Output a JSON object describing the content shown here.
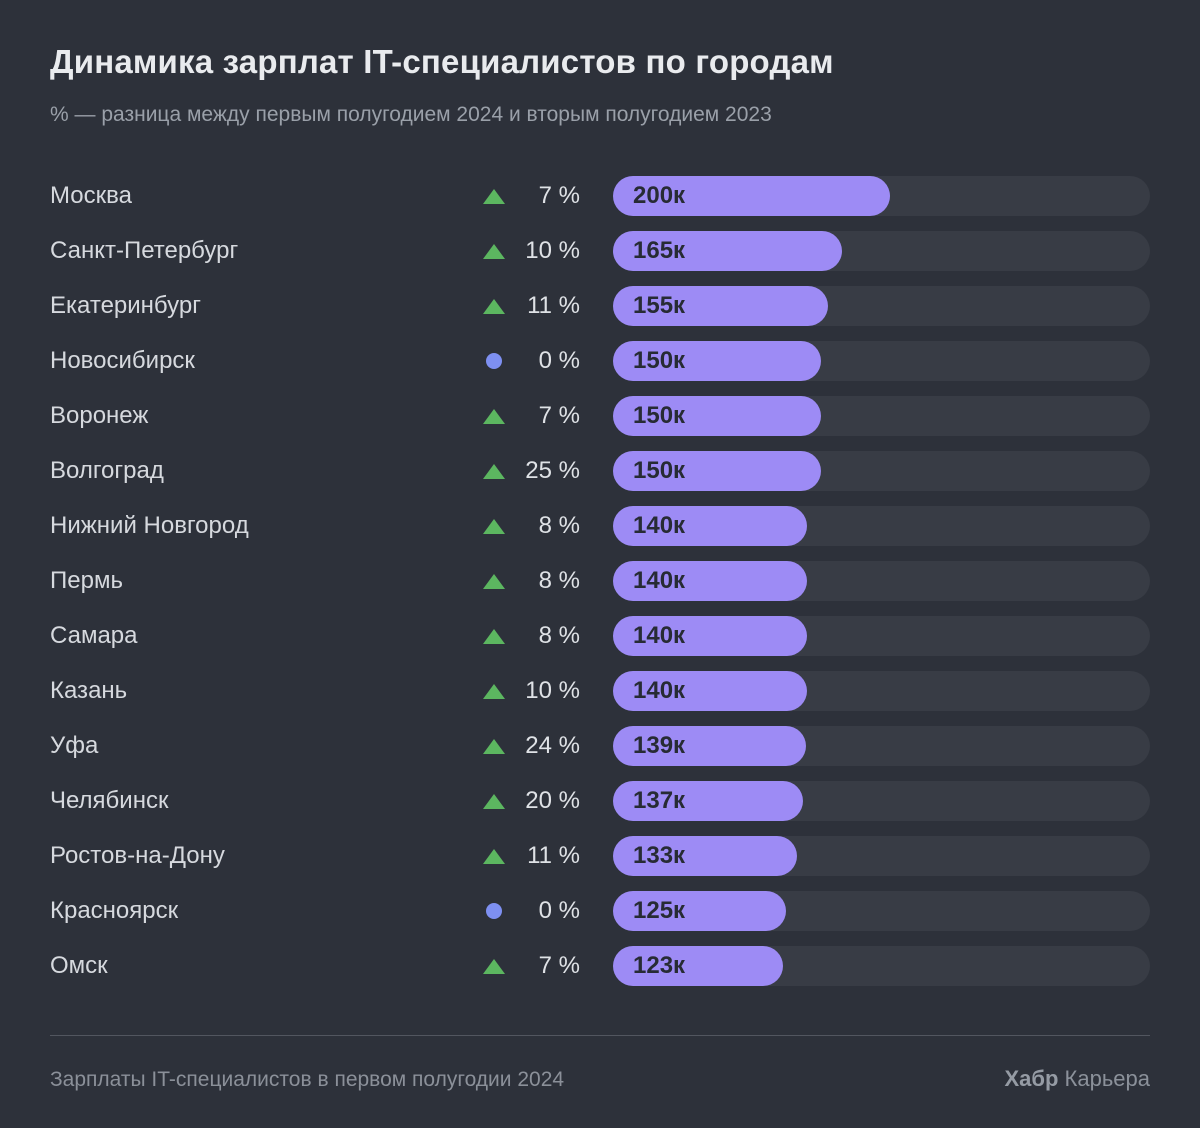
{
  "title": "Динамика зарплат IT-специалистов по городам",
  "subtitle": "% — разница между первым полугодием 2024 и вторым полугодием 2023",
  "footer": {
    "left": "Зарплаты IT-специалистов в первом полугодии 2024",
    "brand_bold": "Хабр",
    "brand_rest": " Карьера"
  },
  "colors": {
    "background": "#2d313a",
    "bar_fill": "#9d8bf5",
    "bar_track": "#383c45",
    "bar_text": "#272b34",
    "up_triangle_green": "#5cb660",
    "zero_dot_blue": "#7e90f2",
    "title_text": "#e9ebee",
    "muted_text": "#9aa0a9"
  },
  "chart_data": {
    "type": "bar",
    "orientation": "horizontal",
    "title": "Динамика зарплат IT-специалистов по городам",
    "subtitle": "% — разница между первым полугодием 2024 и вторым полугодием 2023",
    "value_unit": "тыс. руб. (к)",
    "grid": false,
    "legend": false,
    "bar_scale": {
      "reference_value_k": 200,
      "reference_fraction_of_track": 0.516
    },
    "categories": [
      "Москва",
      "Санкт-Петербург",
      "Екатеринбург",
      "Новосибирск",
      "Воронеж",
      "Волгоград",
      "Нижний Новгород",
      "Пермь",
      "Самара",
      "Казань",
      "Уфа",
      "Челябинск",
      "Ростов-на-Дону",
      "Красноярск",
      "Омск"
    ],
    "rows": [
      {
        "city": "Москва",
        "indicator": "up",
        "change_pct": 7,
        "change_display": "7 %",
        "salary_k": 200,
        "salary_label": "200к"
      },
      {
        "city": "Санкт-Петербург",
        "indicator": "up",
        "change_pct": 10,
        "change_display": "10 %",
        "salary_k": 165,
        "salary_label": "165к"
      },
      {
        "city": "Екатеринбург",
        "indicator": "up",
        "change_pct": 11,
        "change_display": "11 %",
        "salary_k": 155,
        "salary_label": "155к"
      },
      {
        "city": "Новосибирск",
        "indicator": "zero",
        "change_pct": 0,
        "change_display": "0 %",
        "salary_k": 150,
        "salary_label": "150к"
      },
      {
        "city": "Воронеж",
        "indicator": "up",
        "change_pct": 7,
        "change_display": "7 %",
        "salary_k": 150,
        "salary_label": "150к"
      },
      {
        "city": "Волгоград",
        "indicator": "up",
        "change_pct": 25,
        "change_display": "25 %",
        "salary_k": 150,
        "salary_label": "150к"
      },
      {
        "city": "Нижний Новгород",
        "indicator": "up",
        "change_pct": 8,
        "change_display": "8 %",
        "salary_k": 140,
        "salary_label": "140к"
      },
      {
        "city": "Пермь",
        "indicator": "up",
        "change_pct": 8,
        "change_display": "8 %",
        "salary_k": 140,
        "salary_label": "140к"
      },
      {
        "city": "Самара",
        "indicator": "up",
        "change_pct": 8,
        "change_display": "8 %",
        "salary_k": 140,
        "salary_label": "140к"
      },
      {
        "city": "Казань",
        "indicator": "up",
        "change_pct": 10,
        "change_display": "10 %",
        "salary_k": 140,
        "salary_label": "140к"
      },
      {
        "city": "Уфа",
        "indicator": "up",
        "change_pct": 24,
        "change_display": "24 %",
        "salary_k": 139,
        "salary_label": "139к"
      },
      {
        "city": "Челябинск",
        "indicator": "up",
        "change_pct": 20,
        "change_display": "20 %",
        "salary_k": 137,
        "salary_label": "137к"
      },
      {
        "city": "Ростов-на-Дону",
        "indicator": "up",
        "change_pct": 11,
        "change_display": "11 %",
        "salary_k": 133,
        "salary_label": "133к"
      },
      {
        "city": "Красноярск",
        "indicator": "zero",
        "change_pct": 0,
        "change_display": "0 %",
        "salary_k": 125,
        "salary_label": "125к"
      },
      {
        "city": "Омск",
        "indicator": "up",
        "change_pct": 7,
        "change_display": "7 %",
        "salary_k": 123,
        "salary_label": "123к"
      }
    ]
  }
}
